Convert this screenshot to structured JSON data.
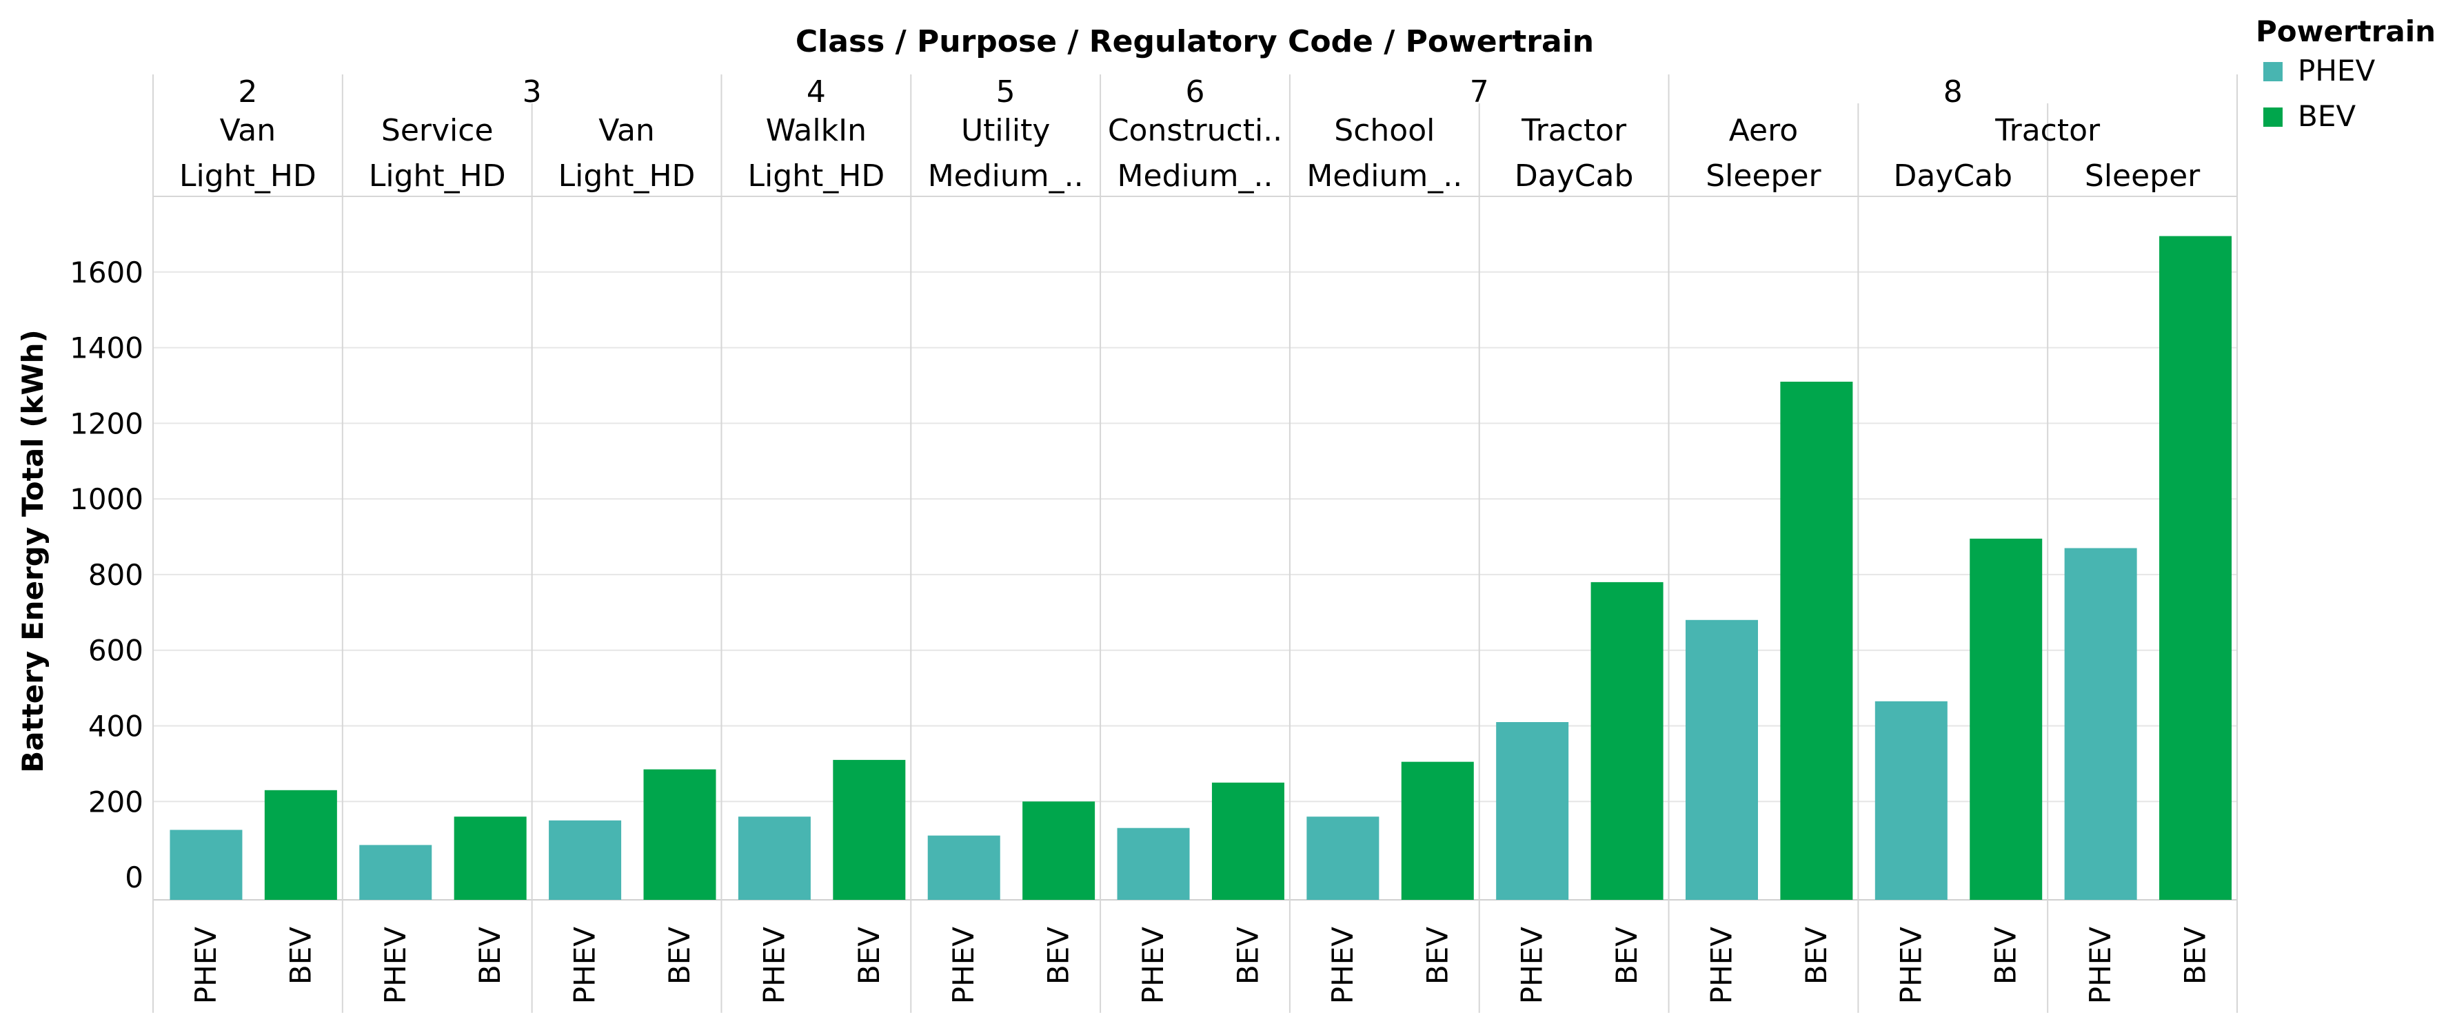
{
  "chart_data": {
    "type": "bar",
    "header_title": "Class / Purpose / Regulatory Code / Powertrain",
    "ylabel": "Battery Energy Total (kWh)",
    "ylim": [
      -60,
      1800
    ],
    "yticks": [
      0,
      200,
      400,
      600,
      800,
      1000,
      1200,
      1400,
      1600
    ],
    "legend": {
      "title": "Powertrain",
      "position": "top-right",
      "items": [
        {
          "label": "PHEV",
          "color": "#48b5b1"
        },
        {
          "label": "BEV",
          "color": "#00a64c"
        }
      ]
    },
    "classes": [
      {
        "label": "2",
        "span": 1
      },
      {
        "label": "3",
        "span": 2
      },
      {
        "label": "4",
        "span": 1
      },
      {
        "label": "5",
        "span": 1
      },
      {
        "label": "6",
        "span": 1
      },
      {
        "label": "7",
        "span": 2
      },
      {
        "label": "8",
        "span": 3
      }
    ],
    "purposes": [
      {
        "label": "Van",
        "span": 1
      },
      {
        "label": "Service",
        "span": 1
      },
      {
        "label": "Van",
        "span": 1
      },
      {
        "label": "WalkIn",
        "span": 1
      },
      {
        "label": "Utility",
        "span": 1
      },
      {
        "label": "Constructi..",
        "span": 1
      },
      {
        "label": "School",
        "span": 1
      },
      {
        "label": "Tractor",
        "span": 1
      },
      {
        "label": "Aero",
        "span": 1
      },
      {
        "label": "Tractor",
        "span": 2
      }
    ],
    "reg_codes": [
      "Light_HD",
      "Light_HD",
      "Light_HD",
      "Light_HD",
      "Medium_..",
      "Medium_..",
      "Medium_..",
      "DayCab",
      "Sleeper",
      "DayCab",
      "Sleeper"
    ],
    "series": [
      {
        "name": "PHEV",
        "color": "#48b5b1",
        "values": [
          125,
          85,
          150,
          160,
          110,
          130,
          160,
          410,
          680,
          465,
          870
        ]
      },
      {
        "name": "BEV",
        "color": "#00a64c",
        "values": [
          230,
          160,
          285,
          310,
          200,
          250,
          305,
          780,
          1310,
          895,
          1695
        ]
      }
    ]
  }
}
